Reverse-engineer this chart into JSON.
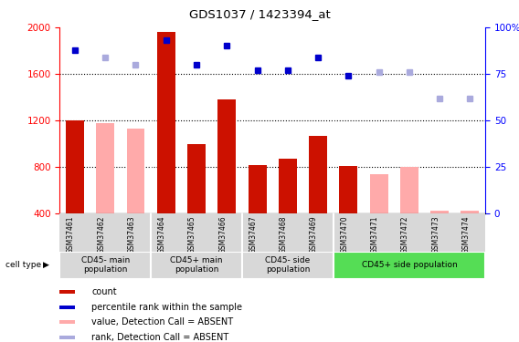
{
  "title": "GDS1037 / 1423394_at",
  "samples": [
    "GSM37461",
    "GSM37462",
    "GSM37463",
    "GSM37464",
    "GSM37465",
    "GSM37466",
    "GSM37467",
    "GSM37468",
    "GSM37469",
    "GSM37470",
    "GSM37471",
    "GSM37472",
    "GSM37473",
    "GSM37474"
  ],
  "bar_values": [
    1200,
    null,
    null,
    1960,
    1000,
    1380,
    820,
    870,
    1070,
    810,
    null,
    null,
    null,
    null
  ],
  "bar_absent": [
    null,
    1180,
    1130,
    null,
    null,
    null,
    null,
    null,
    null,
    null,
    740,
    800,
    430,
    430
  ],
  "rank_present": [
    88,
    null,
    null,
    93,
    80,
    90,
    77,
    77,
    84,
    74,
    null,
    null,
    null,
    null
  ],
  "rank_absent": [
    null,
    84,
    80,
    null,
    null,
    null,
    null,
    null,
    null,
    null,
    76,
    76,
    62,
    62
  ],
  "ylim_left": [
    400,
    2000
  ],
  "ylim_right": [
    0,
    100
  ],
  "yticks_left": [
    400,
    800,
    1200,
    1600,
    2000
  ],
  "yticks_right": [
    0,
    25,
    50,
    75,
    100
  ],
  "grid_values": [
    800,
    1200,
    1600
  ],
  "group_starts": [
    0,
    3,
    6,
    9
  ],
  "group_ends": [
    3,
    6,
    9,
    14
  ],
  "group_labels": [
    "CD45- main\npopulation",
    "CD45+ main\npopulation",
    "CD45- side\npopulation",
    "CD45+ side population"
  ],
  "group_colors": [
    "#d8d8d8",
    "#d8d8d8",
    "#d8d8d8",
    "#55dd55"
  ],
  "bar_color_present": "#cc1100",
  "bar_color_absent": "#ffaaaa",
  "dot_color_present": "#0000cc",
  "dot_color_absent": "#aaaadd",
  "legend_data": [
    [
      "#cc1100",
      "count"
    ],
    [
      "#0000cc",
      "percentile rank within the sample"
    ],
    [
      "#ffaaaa",
      "value, Detection Call = ABSENT"
    ],
    [
      "#aaaadd",
      "rank, Detection Call = ABSENT"
    ]
  ],
  "cell_type_label": "cell type",
  "bar_width": 0.6
}
